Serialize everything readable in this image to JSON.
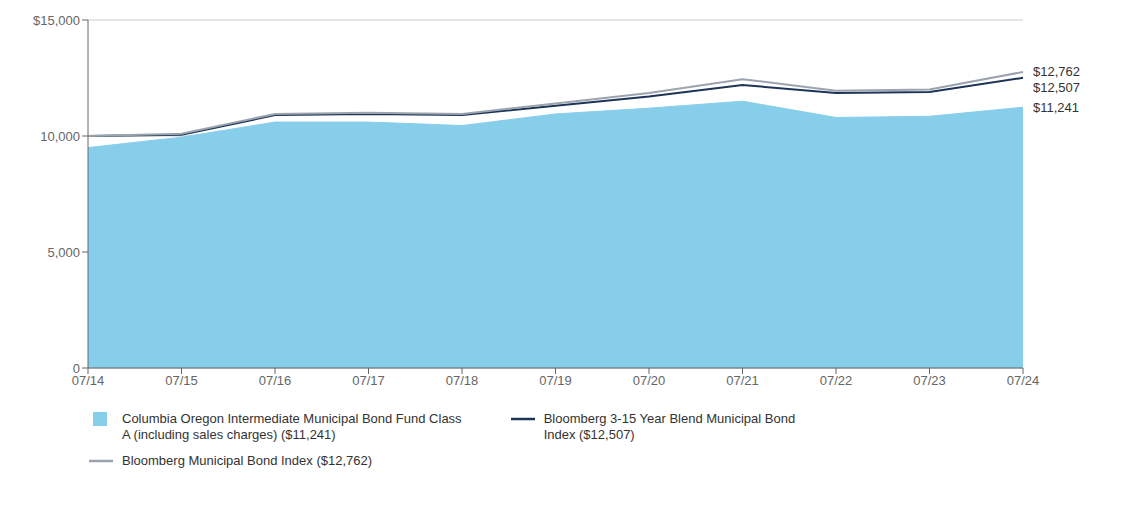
{
  "chart_data": {
    "type": "line",
    "categories": [
      "07/14",
      "07/15",
      "07/16",
      "07/17",
      "07/18",
      "07/19",
      "07/20",
      "07/21",
      "07/22",
      "07/23",
      "07/24"
    ],
    "series": [
      {
        "name": "Columbia Oregon Intermediate Municipal Bond Fund Class\nA (including sales charges) ($11,241)",
        "type": "area",
        "color": "#87CEEB",
        "values": [
          9500,
          9950,
          10600,
          10600,
          10450,
          10950,
          11200,
          11500,
          10800,
          10850,
          11241
        ]
      },
      {
        "name": "Bloomberg 3-15 Year Blend Municipal Bond\nIndex ($12,507)",
        "type": "line",
        "color": "#1C3557",
        "values": [
          10000,
          10050,
          10900,
          10950,
          10900,
          11300,
          11700,
          12200,
          11850,
          11900,
          12507
        ]
      },
      {
        "name": "Bloomberg Municipal Bond Index ($12,762)",
        "type": "line",
        "color": "#9BA4AE",
        "values": [
          10000,
          10100,
          10950,
          11000,
          10950,
          11400,
          11850,
          12450,
          11950,
          12000,
          12762
        ]
      }
    ],
    "ylim": [
      0,
      15000
    ],
    "yticks": [
      0,
      {
        "value": 5000,
        "label": "5,000"
      },
      {
        "value": 10000,
        "label": "10,000"
      },
      {
        "value": 15000,
        "label": "$15,000"
      }
    ],
    "grid": true,
    "legend": "bottom",
    "annotations": [
      {
        "text": "$12,762",
        "x": "07/24",
        "y": 12762
      },
      {
        "text": "$12,507",
        "x": "07/24",
        "y": 12507
      },
      {
        "text": "$11,241",
        "x": "07/24",
        "y": 11241
      }
    ]
  }
}
